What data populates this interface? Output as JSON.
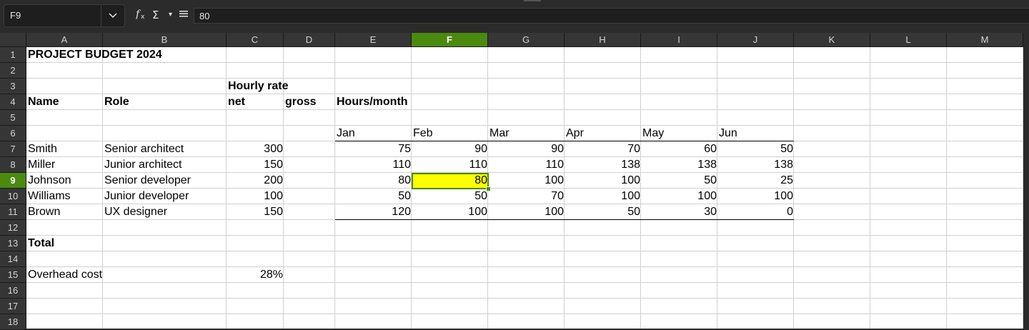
{
  "formula_bar": {
    "name_box": "F9",
    "input": "80",
    "icons": [
      "chevron-down-icon",
      "function-wizard-icon",
      "sum-icon",
      "dropdown-icon",
      "formula-icon"
    ]
  },
  "columns": [
    "A",
    "B",
    "C",
    "D",
    "E",
    "F",
    "G",
    "H",
    "I",
    "J",
    "K",
    "L",
    "M"
  ],
  "rows": [
    "1",
    "2",
    "3",
    "4",
    "5",
    "6",
    "7",
    "8",
    "9",
    "10",
    "11",
    "12",
    "13",
    "14",
    "15",
    "16",
    "17",
    "18"
  ],
  "selected": {
    "column": "F",
    "row": "9",
    "fill": "#ffff00",
    "accent": "#4a8a0f"
  },
  "sheet": {
    "title": "PROJECT BUDGET 2024",
    "hourly_rate": "Hourly rate",
    "hdr_name": "Name",
    "hdr_role": "Role",
    "hdr_net": "net",
    "hdr_gross": "gross",
    "hdr_hours": "Hours/month",
    "months": [
      "Jan",
      "Feb",
      "Mar",
      "Apr",
      "May",
      "Jun"
    ],
    "people": [
      {
        "name": "Smith",
        "role": "Senior architect",
        "net": "300",
        "hours": [
          "75",
          "90",
          "90",
          "70",
          "60",
          "50"
        ]
      },
      {
        "name": "Miller",
        "role": "Junior architect",
        "net": "150",
        "hours": [
          "110",
          "110",
          "110",
          "138",
          "138",
          "138"
        ]
      },
      {
        "name": "Johnson",
        "role": "Senior developer",
        "net": "200",
        "hours": [
          "80",
          "80",
          "100",
          "100",
          "50",
          "25"
        ]
      },
      {
        "name": "Williams",
        "role": "Junior developer",
        "net": "100",
        "hours": [
          "50",
          "50",
          "70",
          "100",
          "100",
          "100"
        ]
      },
      {
        "name": "Brown",
        "role": "UX designer",
        "net": "150",
        "hours": [
          "120",
          "100",
          "100",
          "50",
          "30",
          "0"
        ]
      }
    ],
    "total": "Total",
    "overhead_label": "Overhead cost",
    "overhead_value": "28%"
  }
}
